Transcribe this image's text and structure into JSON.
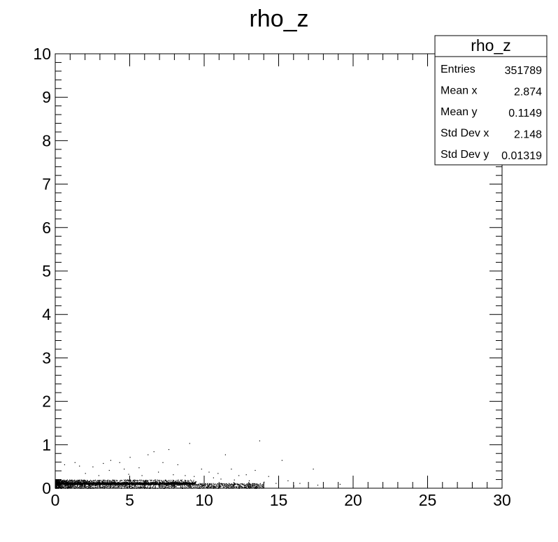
{
  "chart_data": {
    "type": "scatter",
    "title": "rho_z",
    "xlabel": "",
    "ylabel": "",
    "xlim": [
      0,
      30
    ],
    "ylim": [
      0,
      10
    ],
    "x_ticks": [
      0,
      5,
      10,
      15,
      20,
      25,
      30
    ],
    "y_ticks": [
      0,
      1,
      2,
      3,
      4,
      5,
      6,
      7,
      8,
      9,
      10
    ],
    "grid": false,
    "legend": "none",
    "point_color": "#000000",
    "dense_band": {
      "x_range": [
        0,
        14
      ],
      "y_range": [
        0.0,
        0.2
      ]
    },
    "points": [
      {
        "x": 0.6,
        "y": 0.55
      },
      {
        "x": 1.3,
        "y": 0.6
      },
      {
        "x": 1.6,
        "y": 0.52
      },
      {
        "x": 2.5,
        "y": 0.5
      },
      {
        "x": 3.2,
        "y": 0.58
      },
      {
        "x": 3.7,
        "y": 0.65
      },
      {
        "x": 4.3,
        "y": 0.6
      },
      {
        "x": 4.6,
        "y": 0.45
      },
      {
        "x": 5.0,
        "y": 0.72
      },
      {
        "x": 5.6,
        "y": 0.48
      },
      {
        "x": 6.2,
        "y": 0.78
      },
      {
        "x": 6.6,
        "y": 0.85
      },
      {
        "x": 7.2,
        "y": 0.6
      },
      {
        "x": 7.6,
        "y": 0.9
      },
      {
        "x": 8.2,
        "y": 0.55
      },
      {
        "x": 9.0,
        "y": 1.04
      },
      {
        "x": 9.8,
        "y": 0.45
      },
      {
        "x": 10.3,
        "y": 0.38
      },
      {
        "x": 10.9,
        "y": 0.35
      },
      {
        "x": 11.4,
        "y": 0.78
      },
      {
        "x": 11.8,
        "y": 0.45
      },
      {
        "x": 12.3,
        "y": 0.3
      },
      {
        "x": 12.8,
        "y": 0.32
      },
      {
        "x": 13.4,
        "y": 0.42
      },
      {
        "x": 13.7,
        "y": 1.1
      },
      {
        "x": 14.3,
        "y": 0.28
      },
      {
        "x": 15.2,
        "y": 0.65
      },
      {
        "x": 15.6,
        "y": 0.18
      },
      {
        "x": 16.4,
        "y": 0.12
      },
      {
        "x": 17.3,
        "y": 0.45
      },
      {
        "x": 17.6,
        "y": 0.08
      },
      {
        "x": 19.1,
        "y": 0.1
      },
      {
        "x": 2.0,
        "y": 0.35
      },
      {
        "x": 2.9,
        "y": 0.3
      },
      {
        "x": 3.6,
        "y": 0.42
      },
      {
        "x": 4.9,
        "y": 0.33
      },
      {
        "x": 5.8,
        "y": 0.3
      },
      {
        "x": 6.9,
        "y": 0.38
      },
      {
        "x": 7.9,
        "y": 0.32
      },
      {
        "x": 8.7,
        "y": 0.3
      },
      {
        "x": 9.3,
        "y": 0.28
      },
      {
        "x": 10.6,
        "y": 0.25
      },
      {
        "x": 11.1,
        "y": 0.22
      },
      {
        "x": 12.0,
        "y": 0.2
      },
      {
        "x": 13.0,
        "y": 0.18
      },
      {
        "x": 14.0,
        "y": 0.15
      },
      {
        "x": 14.8,
        "y": 0.12
      },
      {
        "x": 16.0,
        "y": 0.06
      }
    ]
  },
  "stats_box": {
    "title": "rho_z",
    "rows": [
      {
        "label": "Entries",
        "value": "351789"
      },
      {
        "label": "Mean x",
        "value": "2.874"
      },
      {
        "label": "Mean y",
        "value": "0.1149"
      },
      {
        "label": "Std Dev x",
        "value": "2.148"
      },
      {
        "label": "Std Dev y",
        "value": "0.01319"
      }
    ]
  }
}
